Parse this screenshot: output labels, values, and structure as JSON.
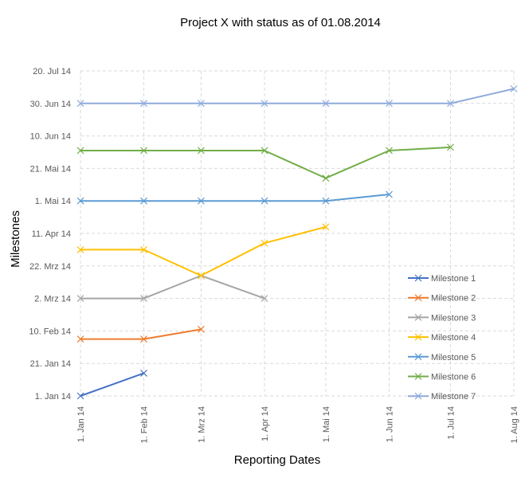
{
  "chart_data": {
    "type": "line",
    "title": "Project X with status as of 01.08.2014",
    "xlabel": "Reporting Dates",
    "ylabel": "Milestones",
    "x_tick_labels": [
      "1. Jan 14",
      "1. Feb 14",
      "1. Mrz 14",
      "1. Apr 14",
      "1. Mai 14",
      "1. Jun 14",
      "1. Jul 14",
      "1. Aug 14"
    ],
    "y_tick_labels": [
      "1. Jan 14",
      "21. Jan 14",
      "10. Feb 14",
      "2. Mrz 14",
      "22. Mrz 14",
      "11. Apr 14",
      "1. Mai 14",
      "21. Mai 14",
      "10. Jun 14",
      "30. Jun 14",
      "20. Jul 14"
    ],
    "xlim": [
      "2014-01-01",
      "2014-08-01"
    ],
    "ylim": [
      "2014-01-01",
      "2014-07-20"
    ],
    "grid": true,
    "legend_position": "bottom-right",
    "series": [
      {
        "name": "Milestone 1",
        "color": "#4472c4",
        "points": [
          [
            "2014-01-01",
            "2014-01-01"
          ],
          [
            "2014-02-01",
            "2014-01-15"
          ]
        ]
      },
      {
        "name": "Milestone 2",
        "color": "#ed7d31",
        "points": [
          [
            "2014-01-01",
            "2014-02-05"
          ],
          [
            "2014-02-01",
            "2014-02-05"
          ],
          [
            "2014-03-01",
            "2014-02-11"
          ]
        ]
      },
      {
        "name": "Milestone 3",
        "color": "#a5a5a5",
        "points": [
          [
            "2014-01-01",
            "2014-03-02"
          ],
          [
            "2014-02-01",
            "2014-03-02"
          ],
          [
            "2014-03-01",
            "2014-03-16"
          ],
          [
            "2014-04-01",
            "2014-03-02"
          ]
        ]
      },
      {
        "name": "Milestone 4",
        "color": "#ffc000",
        "points": [
          [
            "2014-01-01",
            "2014-04-01"
          ],
          [
            "2014-02-01",
            "2014-04-01"
          ],
          [
            "2014-03-01",
            "2014-03-16"
          ],
          [
            "2014-04-01",
            "2014-04-05"
          ],
          [
            "2014-05-01",
            "2014-04-15"
          ]
        ]
      },
      {
        "name": "Milestone 5",
        "color": "#5b9bd5",
        "points": [
          [
            "2014-01-01",
            "2014-05-01"
          ],
          [
            "2014-02-01",
            "2014-05-01"
          ],
          [
            "2014-03-01",
            "2014-05-01"
          ],
          [
            "2014-04-01",
            "2014-05-01"
          ],
          [
            "2014-05-01",
            "2014-05-01"
          ],
          [
            "2014-06-01",
            "2014-05-05"
          ]
        ]
      },
      {
        "name": "Milestone 6",
        "color": "#70ad47",
        "points": [
          [
            "2014-01-01",
            "2014-06-01"
          ],
          [
            "2014-02-01",
            "2014-06-01"
          ],
          [
            "2014-03-01",
            "2014-06-01"
          ],
          [
            "2014-04-01",
            "2014-06-01"
          ],
          [
            "2014-05-01",
            "2014-05-15"
          ],
          [
            "2014-06-01",
            "2014-06-01"
          ],
          [
            "2014-07-01",
            "2014-06-03"
          ]
        ]
      },
      {
        "name": "Milestone 7",
        "color": "#8faadc",
        "points": [
          [
            "2014-01-01",
            "2014-06-30"
          ],
          [
            "2014-02-01",
            "2014-06-30"
          ],
          [
            "2014-03-01",
            "2014-06-30"
          ],
          [
            "2014-04-01",
            "2014-06-30"
          ],
          [
            "2014-05-01",
            "2014-06-30"
          ],
          [
            "2014-06-01",
            "2014-06-30"
          ],
          [
            "2014-07-01",
            "2014-06-30"
          ],
          [
            "2014-08-01",
            "2014-07-09"
          ]
        ]
      }
    ]
  }
}
